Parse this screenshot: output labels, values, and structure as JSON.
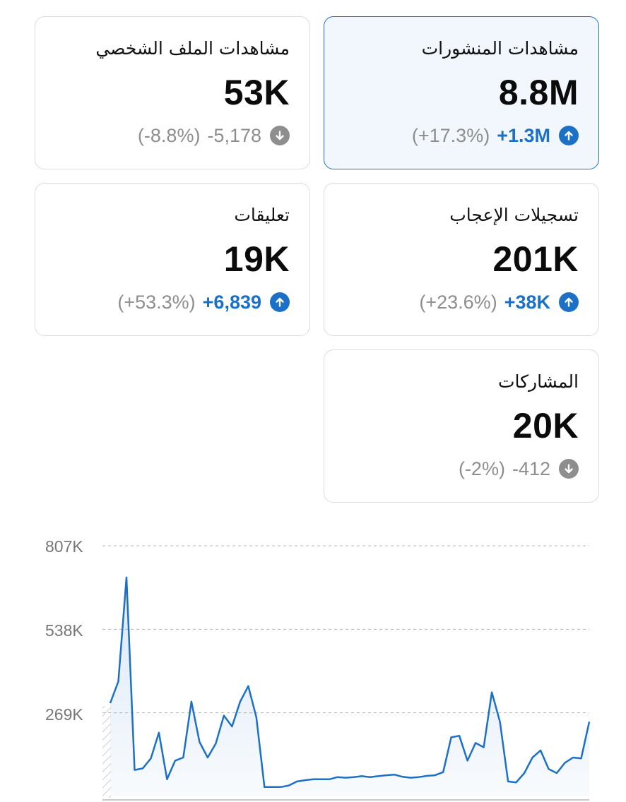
{
  "colors": {
    "accent": "#1c71c7",
    "neutral": "#8e8e8e",
    "text": "#0b0b0b",
    "border": "#dcdcdc",
    "selected_bg": "#f2f7fd"
  },
  "cards": [
    {
      "label": "مشاهدات المنشورات",
      "value": "8.8M",
      "delta": "+1.3M",
      "pct": "(+17.3%)",
      "direction": "up",
      "selected": true
    },
    {
      "label": "مشاهدات الملف الشخصي",
      "value": "53K",
      "delta": "-5,178",
      "pct": "(-8.8%)",
      "direction": "down",
      "selected": false
    },
    {
      "label": "تسجيلات الإعجاب",
      "value": "201K",
      "delta": "+38K",
      "pct": "(+23.6%)",
      "direction": "up",
      "selected": false
    },
    {
      "label": "تعليقات",
      "value": "19K",
      "delta": "+6,839",
      "pct": "(+53.3%)",
      "direction": "up",
      "selected": false
    },
    {
      "label": "المشاركات",
      "value": "20K",
      "delta": "-412",
      "pct": "(-2%)",
      "direction": "down",
      "selected": false
    }
  ],
  "chart_data": {
    "type": "area",
    "title": "",
    "xlabel": "",
    "ylabel": "",
    "y_ticks": [
      "807K",
      "538K",
      "269K"
    ],
    "y_tick_values": [
      807000,
      538000,
      269000
    ],
    "ylim": [
      0,
      807000
    ],
    "grid": true,
    "series": [
      {
        "name": "مشاهدات المنشورات",
        "values": [
          300000,
          370000,
          705000,
          85000,
          90000,
          122000,
          205000,
          55000,
          115000,
          125000,
          305000,
          175000,
          125000,
          170000,
          260000,
          225000,
          305000,
          355000,
          255000,
          30000,
          30000,
          30000,
          35000,
          48000,
          52000,
          55000,
          55000,
          55000,
          62000,
          60000,
          62000,
          65000,
          62000,
          65000,
          68000,
          70000,
          63000,
          60000,
          62000,
          66000,
          68000,
          78000,
          190000,
          195000,
          115000,
          172000,
          158000,
          335000,
          240000,
          48000,
          45000,
          75000,
          125000,
          148000,
          88000,
          75000,
          108000,
          125000,
          122000,
          240000
        ]
      }
    ]
  }
}
